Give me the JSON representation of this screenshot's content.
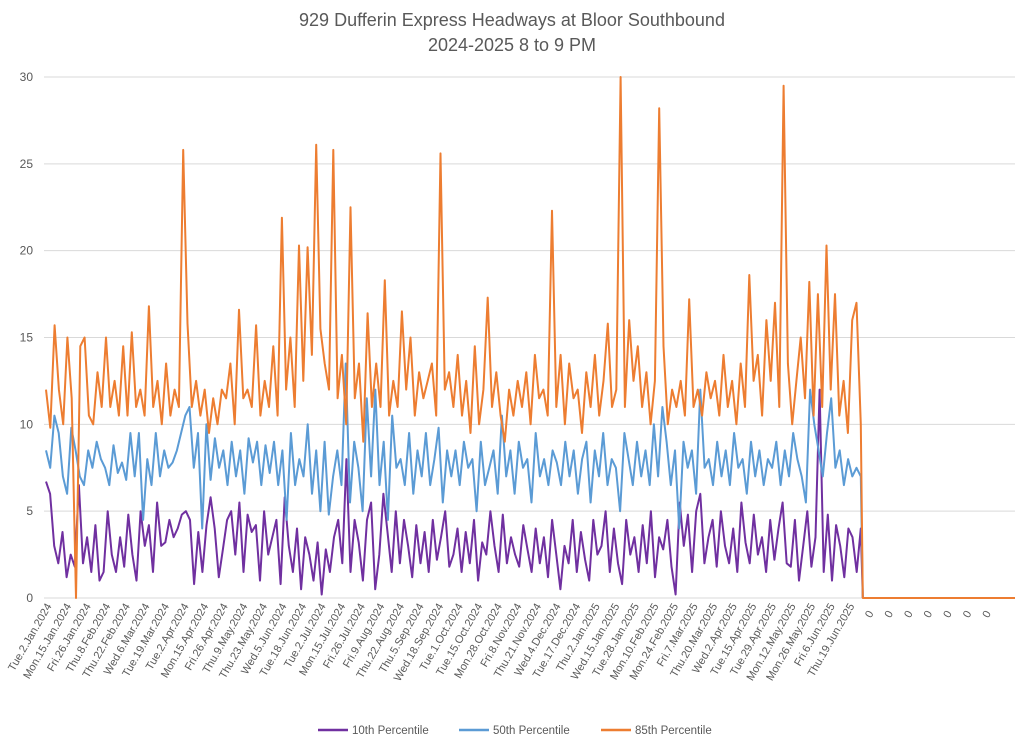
{
  "chart_data": {
    "type": "line",
    "title": "929 Dufferin Express Headways at Bloor Southbound",
    "subtitle": "2024-2025 8 to 9 PM",
    "xlabel": "",
    "ylabel": "",
    "ylim": [
      0,
      30
    ],
    "yticks": [
      0,
      5,
      10,
      15,
      20,
      25,
      30
    ],
    "grid": true,
    "legend_position": "bottom",
    "x_tick_labels": [
      "Tue.2.Jan.2024",
      "Mon.15.Jan.2024",
      "Fri.26.Jan.2024",
      "Thu.8.Feb.2024",
      "Thu.22.Feb.2024",
      "Wed.6.Mar.2024",
      "Tue.19.Mar.2024",
      "Tue.2.Apr.2024",
      "Mon.15.Apr.2024",
      "Fri.26.Apr.2024",
      "Thu.9.May.2024",
      "Thu.23.May.2024",
      "Wed.5.Jun.2024",
      "Tue.18.Jun.2024",
      "Tue.2.Jul.2024",
      "Mon.15.Jul.2024",
      "Fri.26.Jul.2024",
      "Fri.9.Aug.2024",
      "Thu.22.Aug.2024",
      "Thu.5.Sep.2024",
      "Wed.18.Sep.2024",
      "Tue.1.Oct.2024",
      "Tue.15.Oct.2024",
      "Mon.28.Oct.2024",
      "Fri.8.Nov.2024",
      "Thu.21.Nov.2024",
      "Wed.4.Dec.2024",
      "Tue.17.Dec.2024",
      "Thu.2.Jan.2025",
      "Wed.15.Jan.2025",
      "Tue.28.Jan.2025",
      "Mon.10.Feb.2025",
      "Mon.24.Feb.2025",
      "Fri.7.Mar.2025",
      "Thu.20.Mar.2025",
      "Wed.2.Apr.2025",
      "Tue.15.Apr.2025",
      "Tue.29.Apr.2025",
      "Mon.12.May.2025",
      "Mon.26.May.2025",
      "Fri.6.Jun.2025",
      "Thu.19.Jun.2025",
      "0",
      "0",
      "0",
      "0",
      "0",
      "0",
      "0"
    ],
    "points_per_label": 8,
    "series": [
      {
        "name": "10th Percentile",
        "color": "#7030A0",
        "values": [
          6.7,
          6.0,
          3.0,
          2.0,
          3.8,
          1.2,
          2.5,
          1.8,
          6.5,
          2.0,
          3.5,
          1.5,
          4.2,
          1.0,
          1.5,
          5.0,
          2.5,
          1.5,
          3.5,
          1.8,
          4.8,
          2.5,
          1.0,
          5.0,
          3.0,
          4.2,
          1.5,
          5.5,
          3.0,
          3.2,
          4.5,
          3.5,
          4.0,
          4.8,
          5.0,
          4.5,
          0.8,
          3.8,
          1.5,
          4.2,
          5.8,
          4.0,
          1.2,
          2.8,
          4.5,
          5.0,
          2.5,
          5.5,
          1.5,
          4.8,
          3.8,
          4.2,
          1.0,
          5.0,
          2.5,
          3.5,
          4.5,
          0.8,
          5.8,
          3.0,
          1.5,
          4.0,
          0.5,
          3.5,
          2.5,
          1.0,
          3.2,
          0.2,
          2.8,
          1.5,
          3.5,
          4.5,
          2.0,
          8.0,
          1.5,
          4.5,
          3.2,
          1.0,
          4.5,
          5.5,
          0.5,
          2.5,
          6.0,
          3.8,
          1.5,
          5.0,
          2.0,
          4.5,
          3.0,
          1.2,
          4.2,
          2.0,
          3.8,
          1.5,
          4.5,
          2.2,
          3.5,
          5.0,
          1.8,
          2.5,
          4.0,
          1.5,
          3.8,
          2.0,
          4.5,
          1.0,
          3.2,
          2.5,
          5.0,
          3.0,
          1.5,
          4.8,
          2.0,
          3.5,
          2.5,
          1.8,
          4.2,
          2.8,
          1.5,
          4.0,
          2.0,
          3.5,
          1.2,
          4.5,
          2.5,
          0.5,
          3.0,
          2.0,
          4.5,
          1.5,
          3.8,
          2.2,
          1.0,
          4.5,
          2.5,
          3.0,
          5.0,
          1.5,
          4.0,
          2.0,
          0.8,
          4.5,
          2.5,
          3.5,
          1.5,
          4.2,
          2.0,
          5.0,
          1.2,
          3.5,
          2.8,
          4.5,
          1.8,
          0.2,
          5.5,
          3.0,
          4.8,
          1.5,
          5.0,
          6.0,
          2.0,
          3.5,
          4.5,
          1.8,
          5.0,
          3.0,
          2.0,
          4.0,
          1.5,
          5.5,
          3.2,
          2.0,
          4.8,
          2.5,
          3.5,
          1.5,
          4.5,
          2.2,
          4.0,
          5.5,
          2.0,
          1.8,
          4.5,
          1.0,
          3.0,
          5.0,
          1.8,
          3.5,
          12.0,
          1.5,
          4.8,
          1.0,
          4.2,
          3.0,
          1.2,
          4.0,
          3.5,
          1.5,
          4.0
        ],
        "visible_end_index": 196
      },
      {
        "name": "50th Percentile",
        "color": "#5B9BD5",
        "values": [
          8.5,
          7.5,
          10.5,
          9.5,
          7.0,
          6.0,
          9.8,
          8.5,
          7.0,
          6.5,
          8.5,
          7.5,
          9.0,
          8.0,
          7.5,
          6.5,
          8.8,
          7.2,
          7.8,
          6.8,
          9.5,
          7.0,
          9.5,
          4.5,
          8.0,
          6.5,
          9.5,
          7.0,
          8.5,
          7.5,
          7.8,
          8.5,
          9.5,
          10.5,
          11.0,
          7.5,
          9.5,
          4.0,
          10.0,
          6.8,
          9.2,
          7.5,
          8.5,
          6.5,
          9.0,
          7.0,
          8.5,
          6.0,
          9.2,
          7.8,
          9.0,
          6.5,
          8.8,
          7.2,
          9.0,
          6.5,
          8.5,
          4.5,
          9.5,
          6.5,
          8.0,
          7.0,
          10.0,
          6.0,
          8.5,
          5.0,
          9.0,
          4.8,
          7.0,
          8.5,
          6.5,
          13.5,
          5.5,
          9.0,
          7.5,
          5.0,
          11.5,
          7.0,
          12.0,
          6.5,
          9.0,
          4.5,
          10.5,
          7.5,
          8.0,
          6.5,
          9.5,
          6.0,
          8.5,
          7.0,
          9.5,
          6.5,
          8.0,
          9.8,
          5.5,
          8.5,
          7.0,
          8.5,
          6.5,
          9.0,
          7.5,
          8.0,
          5.0,
          9.0,
          6.5,
          7.5,
          8.5,
          6.0,
          10.5,
          7.0,
          8.5,
          6.0,
          9.0,
          7.5,
          8.0,
          5.5,
          9.5,
          7.0,
          8.0,
          6.5,
          8.5,
          7.8,
          6.5,
          9.0,
          7.0,
          8.5,
          6.0,
          8.0,
          9.0,
          5.5,
          8.5,
          7.0,
          9.5,
          6.5,
          8.0,
          7.5,
          5.0,
          9.5,
          8.0,
          6.5,
          9.0,
          7.0,
          8.5,
          6.5,
          10.0,
          7.0,
          11.0,
          9.0,
          6.5,
          8.5,
          4.0,
          9.0,
          7.5,
          8.5,
          6.0,
          12.0,
          7.5,
          8.0,
          6.5,
          9.0,
          7.0,
          8.5,
          6.5,
          9.5,
          7.5,
          8.0,
          6.0,
          9.0,
          7.0,
          8.5,
          6.5,
          8.0,
          7.5,
          9.0,
          6.5,
          8.5,
          7.0,
          9.5,
          8.0,
          7.0,
          5.5,
          12.0,
          10.0,
          8.5,
          7.0,
          9.5,
          11.5,
          7.5,
          8.5,
          6.5,
          8.0,
          7.0,
          7.5,
          7.0
        ],
        "visible_end_index": 196
      },
      {
        "name": "85th Percentile",
        "color": "#ED7D31",
        "values": [
          12.0,
          9.8,
          15.7,
          12.0,
          10.0,
          15.0,
          11.5,
          0.0,
          14.5,
          15.0,
          10.5,
          10.0,
          13.0,
          11.0,
          15.0,
          11.0,
          12.5,
          10.5,
          14.5,
          10.5,
          15.3,
          11.0,
          12.0,
          10.5,
          16.8,
          11.0,
          12.5,
          10.0,
          13.5,
          10.5,
          12.0,
          11.0,
          25.8,
          15.8,
          11.0,
          12.5,
          10.5,
          12.0,
          9.5,
          11.5,
          10.0,
          12.0,
          11.5,
          13.5,
          10.0,
          16.6,
          11.5,
          12.0,
          11.0,
          15.7,
          10.5,
          12.5,
          11.0,
          14.5,
          10.5,
          21.9,
          12.0,
          15.0,
          11.0,
          20.3,
          12.5,
          20.2,
          14.0,
          26.1,
          15.5,
          13.5,
          12.0,
          25.8,
          11.5,
          14.0,
          10.0,
          22.5,
          11.5,
          13.5,
          9.0,
          16.4,
          11.0,
          13.5,
          11.0,
          18.3,
          10.5,
          12.5,
          11.0,
          16.5,
          12.0,
          15.0,
          10.5,
          13.0,
          11.5,
          12.5,
          13.5,
          10.5,
          25.6,
          12.0,
          13.0,
          11.0,
          14.0,
          10.5,
          12.5,
          9.5,
          14.5,
          10.0,
          12.0,
          17.3,
          11.0,
          13.0,
          10.5,
          9.0,
          12.0,
          10.5,
          12.5,
          11.0,
          13.0,
          10.0,
          14.0,
          11.5,
          12.0,
          10.5,
          22.3,
          11.0,
          14.0,
          10.0,
          13.5,
          11.5,
          12.0,
          9.5,
          13.0,
          11.0,
          14.0,
          10.5,
          12.5,
          15.8,
          11.0,
          12.0,
          30.0,
          11.0,
          16.0,
          12.5,
          14.5,
          11.0,
          13.0,
          10.0,
          12.5,
          28.2,
          14.5,
          10.0,
          12.0,
          11.0,
          12.5,
          10.5,
          17.2,
          11.0,
          12.0,
          10.5,
          13.0,
          11.5,
          12.5,
          10.5,
          14.0,
          11.0,
          12.5,
          10.0,
          13.5,
          11.0,
          18.6,
          12.5,
          14.0,
          10.5,
          16.0,
          12.5,
          17.0,
          11.0,
          29.5,
          13.5,
          10.0,
          12.5,
          15.0,
          11.5,
          18.2,
          10.5,
          17.5,
          11.0,
          20.3,
          12.0,
          17.5,
          10.5,
          12.5,
          9.5,
          16.0,
          17.0,
          10.0
        ],
        "visible_end_index": 196
      }
    ],
    "tail_zero_labels": 7
  },
  "legend": {
    "items": [
      {
        "label": "10th Percentile",
        "color": "#7030A0"
      },
      {
        "label": "50th Percentile",
        "color": "#5B9BD5"
      },
      {
        "label": "85th Percentile",
        "color": "#ED7D31"
      }
    ]
  }
}
